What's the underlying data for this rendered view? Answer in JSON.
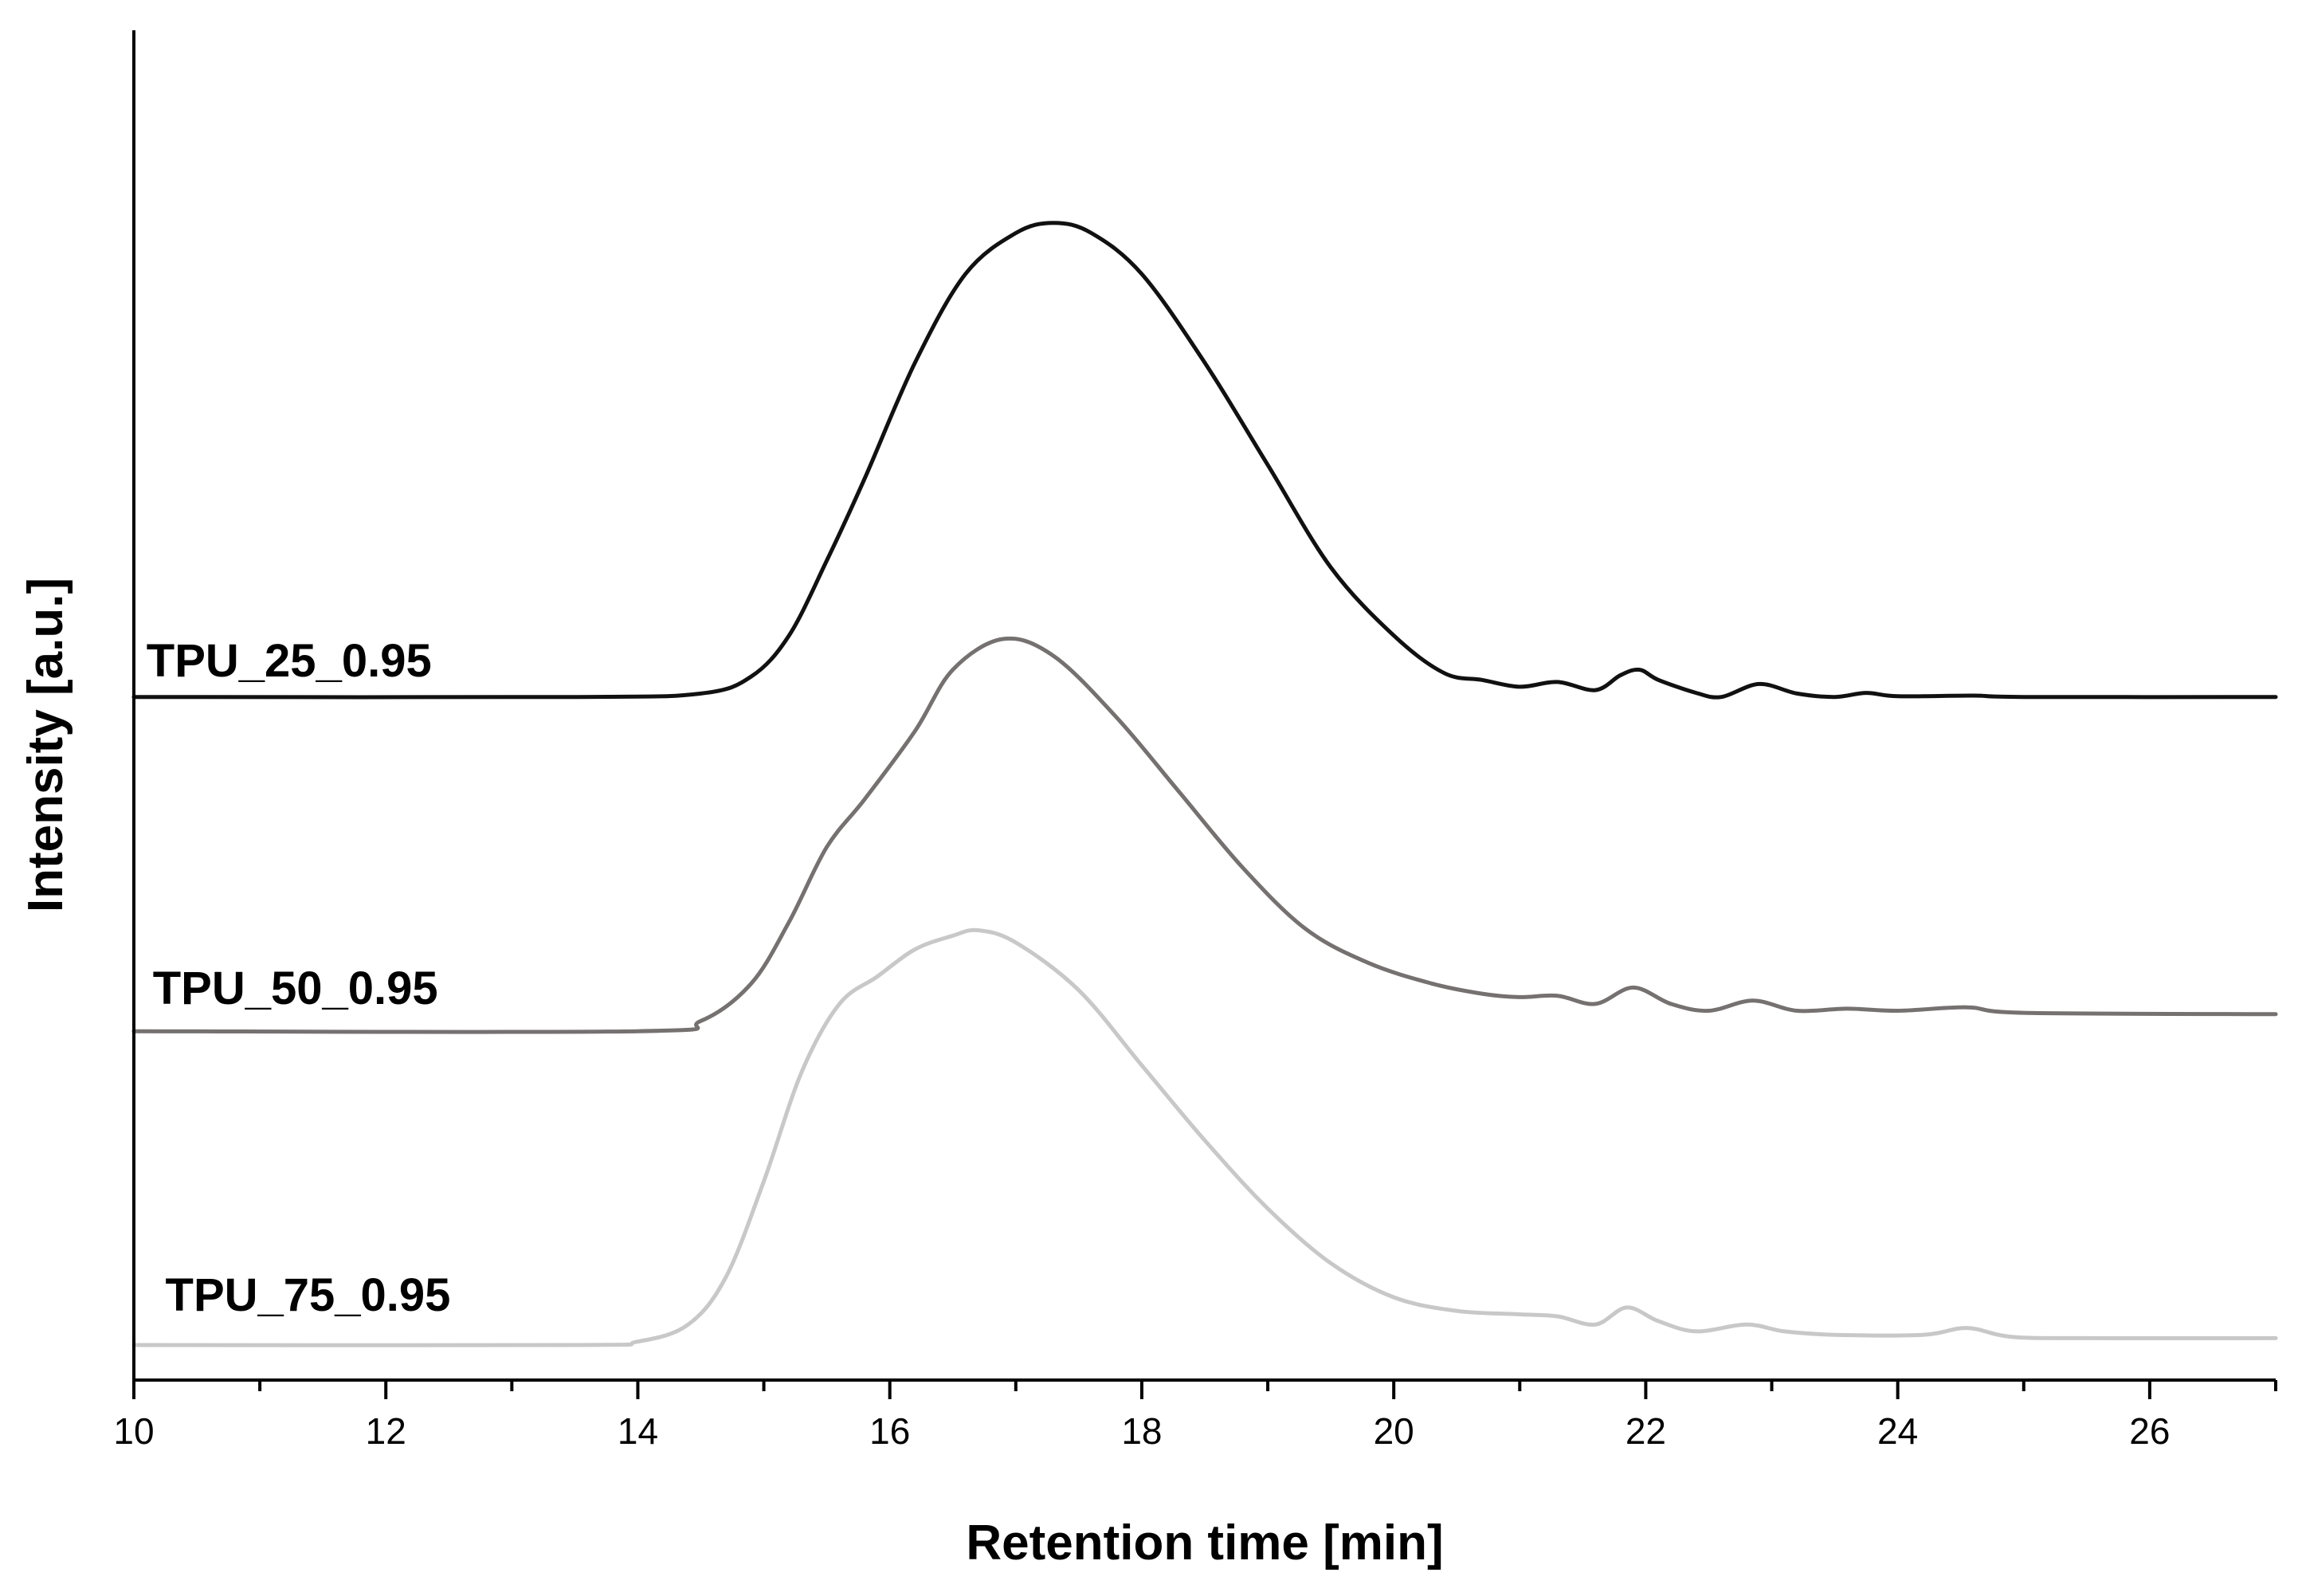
{
  "chart_data": {
    "type": "line",
    "title": "",
    "xlabel": "Retention time [min]",
    "ylabel": "Intensity [a.u.]",
    "xlim": [
      10,
      27
    ],
    "ylim": [
      0,
      1.8
    ],
    "xticks": [
      10,
      12,
      14,
      16,
      18,
      20,
      22,
      24,
      26
    ],
    "x_minor_step": 1,
    "yticks_shown": false,
    "grid": false,
    "legend": "inline labels at left",
    "series": [
      {
        "name": "TPU_25_0.95",
        "color": "#111111",
        "label_at": [
          10.1,
          0.98
        ],
        "points": [
          [
            10,
            0.95
          ],
          [
            13.5,
            0.95
          ],
          [
            14.5,
            0.955
          ],
          [
            14.9,
            0.98
          ],
          [
            15.2,
            1.04
          ],
          [
            15.5,
            1.15
          ],
          [
            15.8,
            1.27
          ],
          [
            16.2,
            1.44
          ],
          [
            16.6,
            1.57
          ],
          [
            17.0,
            1.63
          ],
          [
            17.3,
            1.645
          ],
          [
            17.6,
            1.63
          ],
          [
            18.0,
            1.57
          ],
          [
            18.5,
            1.44
          ],
          [
            19.0,
            1.29
          ],
          [
            19.5,
            1.14
          ],
          [
            20.0,
            1.04
          ],
          [
            20.4,
            0.985
          ],
          [
            20.7,
            0.975
          ],
          [
            21.0,
            0.965
          ],
          [
            21.3,
            0.972
          ],
          [
            21.6,
            0.96
          ],
          [
            21.8,
            0.982
          ],
          [
            21.95,
            0.99
          ],
          [
            22.1,
            0.975
          ],
          [
            22.4,
            0.956
          ],
          [
            22.6,
            0.95
          ],
          [
            22.9,
            0.969
          ],
          [
            23.2,
            0.955
          ],
          [
            23.5,
            0.95
          ],
          [
            23.75,
            0.956
          ],
          [
            24.0,
            0.951
          ],
          [
            24.6,
            0.952
          ],
          [
            25.0,
            0.95
          ],
          [
            27.0,
            0.95
          ]
        ]
      },
      {
        "name": "TPU_50_0.95",
        "color": "#767171",
        "label_at": [
          10.15,
          0.5
        ],
        "points": [
          [
            10,
            0.46
          ],
          [
            14.0,
            0.46
          ],
          [
            14.5,
            0.475
          ],
          [
            14.9,
            0.53
          ],
          [
            15.2,
            0.62
          ],
          [
            15.5,
            0.73
          ],
          [
            15.8,
            0.8
          ],
          [
            16.2,
            0.9
          ],
          [
            16.5,
            0.99
          ],
          [
            16.9,
            1.035
          ],
          [
            17.3,
            1.01
          ],
          [
            17.8,
            0.92
          ],
          [
            18.3,
            0.81
          ],
          [
            18.8,
            0.7
          ],
          [
            19.3,
            0.61
          ],
          [
            19.8,
            0.56
          ],
          [
            20.3,
            0.53
          ],
          [
            20.7,
            0.515
          ],
          [
            21.0,
            0.51
          ],
          [
            21.3,
            0.512
          ],
          [
            21.6,
            0.5
          ],
          [
            21.9,
            0.524
          ],
          [
            22.2,
            0.5
          ],
          [
            22.5,
            0.49
          ],
          [
            22.85,
            0.505
          ],
          [
            23.2,
            0.49
          ],
          [
            23.6,
            0.493
          ],
          [
            24.0,
            0.49
          ],
          [
            24.55,
            0.495
          ],
          [
            25.0,
            0.487
          ],
          [
            27.0,
            0.485
          ]
        ]
      },
      {
        "name": "TPU_75_0.95",
        "color": "#c8c8c8",
        "label_at": [
          10.25,
          0.05
        ],
        "points": [
          [
            10,
            0.0
          ],
          [
            13.5,
            0.0
          ],
          [
            14.0,
            0.005
          ],
          [
            14.4,
            0.03
          ],
          [
            14.7,
            0.1
          ],
          [
            15.0,
            0.24
          ],
          [
            15.3,
            0.4
          ],
          [
            15.6,
            0.5
          ],
          [
            15.9,
            0.54
          ],
          [
            16.2,
            0.58
          ],
          [
            16.5,
            0.6
          ],
          [
            16.7,
            0.608
          ],
          [
            17.0,
            0.59
          ],
          [
            17.5,
            0.52
          ],
          [
            18.0,
            0.41
          ],
          [
            18.5,
            0.3
          ],
          [
            19.0,
            0.2
          ],
          [
            19.5,
            0.12
          ],
          [
            20.0,
            0.07
          ],
          [
            20.5,
            0.05
          ],
          [
            21.0,
            0.045
          ],
          [
            21.3,
            0.042
          ],
          [
            21.6,
            0.03
          ],
          [
            21.85,
            0.055
          ],
          [
            22.1,
            0.035
          ],
          [
            22.4,
            0.02
          ],
          [
            22.8,
            0.03
          ],
          [
            23.1,
            0.02
          ],
          [
            23.5,
            0.015
          ],
          [
            24.2,
            0.015
          ],
          [
            24.55,
            0.025
          ],
          [
            24.9,
            0.012
          ],
          [
            25.5,
            0.01
          ],
          [
            27.0,
            0.01
          ]
        ]
      }
    ]
  }
}
